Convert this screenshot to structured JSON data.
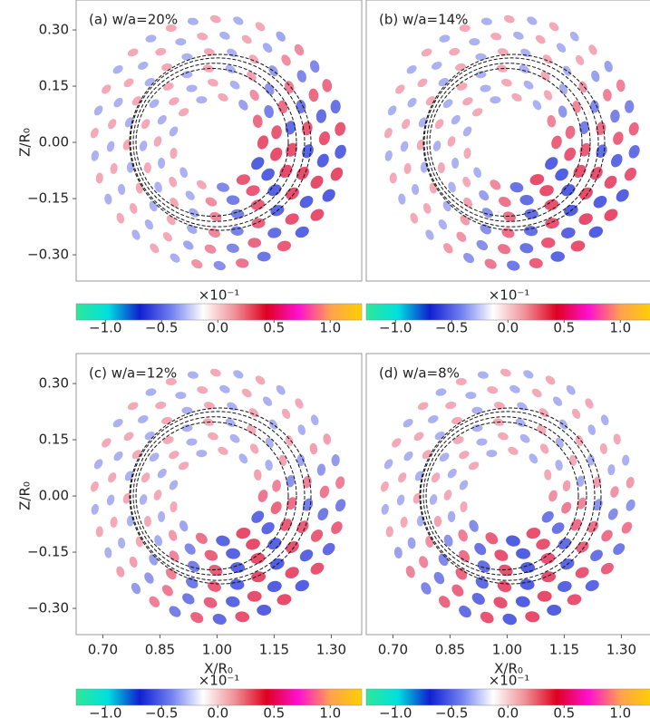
{
  "chart_data": [
    {
      "type": "contour",
      "title": "(a) w/a=20%",
      "xlim": [
        0.63,
        1.38
      ],
      "ylim": [
        -0.37,
        0.38
      ],
      "yticks": [
        {
          "value": 0.3,
          "label": "0.30"
        },
        {
          "value": 0.15,
          "label": "0.15"
        },
        {
          "value": 0,
          "label": "0.00"
        },
        {
          "value": -0.15,
          "label": "−0.15"
        },
        {
          "value": -0.3,
          "label": "−0.30"
        }
      ],
      "ylabel": "Z/R₀",
      "colorbar": {
        "lim": [
          -1.26,
          1.28
        ],
        "multiplier": "×10⁻¹",
        "colors": [
          "#2ee89a",
          "#00e0e0",
          "#1020d0",
          "#7080f0",
          "#ffffff",
          "#f09098",
          "#e00020",
          "#ff10d0",
          "#ffa050",
          "#ffd000"
        ],
        "ticks": [
          {
            "value": -1,
            "label": "−1.0"
          },
          {
            "value": -0.5,
            "label": "−0.5"
          },
          {
            "value": 0,
            "label": "0.0"
          },
          {
            "value": 0.5,
            "label": "0.5"
          },
          {
            "value": 1,
            "label": "1.0"
          }
        ]
      }
    },
    {
      "type": "contour",
      "title": "(b) w/a=14%",
      "xlim": [
        0.63,
        1.38
      ],
      "ylim": [
        -0.37,
        0.38
      ],
      "colorbar": {
        "lim": [
          -1.26,
          1.28
        ],
        "multiplier": "×10⁻¹",
        "colors": [
          "#2ee89a",
          "#00e0e0",
          "#1020d0",
          "#7080f0",
          "#ffffff",
          "#f09098",
          "#e00020",
          "#ff10d0",
          "#ffa050",
          "#ffd000"
        ],
        "ticks": [
          {
            "value": -1,
            "label": "−1.0"
          },
          {
            "value": -0.5,
            "label": "−0.5"
          },
          {
            "value": 0,
            "label": "0.0"
          },
          {
            "value": 0.5,
            "label": "0.5"
          },
          {
            "value": 1,
            "label": "1.0"
          }
        ]
      }
    },
    {
      "type": "contour",
      "title": "(c) w/a=12%",
      "xlim": [
        0.63,
        1.38
      ],
      "ylim": [
        -0.37,
        0.38
      ],
      "yticks": [
        {
          "value": 0.3,
          "label": "0.30"
        },
        {
          "value": 0.15,
          "label": "0.15"
        },
        {
          "value": 0,
          "label": "0.00"
        },
        {
          "value": -0.15,
          "label": "−0.15"
        },
        {
          "value": -0.3,
          "label": "−0.30"
        }
      ],
      "ylabel": "Z/R₀",
      "xticks": [
        {
          "value": 0.7,
          "label": "0.70"
        },
        {
          "value": 0.85,
          "label": "0.85"
        },
        {
          "value": 1,
          "label": "1.00"
        },
        {
          "value": 1.15,
          "label": "1.15"
        },
        {
          "value": 1.3,
          "label": "1.30"
        }
      ],
      "xlabel": "X/R₀",
      "colorbar": {
        "lim": [
          -1.26,
          1.28
        ],
        "multiplier": "×10⁻¹",
        "colors": [
          "#2ee89a",
          "#00e0e0",
          "#1020d0",
          "#7080f0",
          "#ffffff",
          "#f09098",
          "#e00020",
          "#ff10d0",
          "#ffa050",
          "#ffd000"
        ],
        "ticks": [
          {
            "value": -1,
            "label": "−1.0"
          },
          {
            "value": -0.5,
            "label": "−0.5"
          },
          {
            "value": 0,
            "label": "0.0"
          },
          {
            "value": 0.5,
            "label": "0.5"
          },
          {
            "value": 1,
            "label": "1.0"
          }
        ]
      }
    },
    {
      "type": "contour",
      "title": "(d) w/a=8%",
      "xlim": [
        0.63,
        1.38
      ],
      "ylim": [
        -0.37,
        0.38
      ],
      "xticks": [
        {
          "value": 0.7,
          "label": "0.70"
        },
        {
          "value": 0.85,
          "label": "0.85"
        },
        {
          "value": 1,
          "label": "1.00"
        },
        {
          "value": 1.15,
          "label": "1.15"
        },
        {
          "value": 1.3,
          "label": "1.30"
        }
      ],
      "xlabel": "X/R₀",
      "colorbar": {
        "lim": [
          -1.26,
          1.28
        ],
        "multiplier": "×10⁻¹",
        "colors": [
          "#2ee89a",
          "#00e0e0",
          "#1020d0",
          "#7080f0",
          "#ffffff",
          "#f09098",
          "#e00020",
          "#ff10d0",
          "#ffa050",
          "#ffd000"
        ],
        "ticks": [
          {
            "value": -1,
            "label": "−1.0"
          },
          {
            "value": -0.5,
            "label": "−0.5"
          },
          {
            "value": 0,
            "label": "0.0"
          },
          {
            "value": 0.5,
            "label": "0.5"
          },
          {
            "value": 1,
            "label": "1.0"
          }
        ]
      }
    }
  ]
}
